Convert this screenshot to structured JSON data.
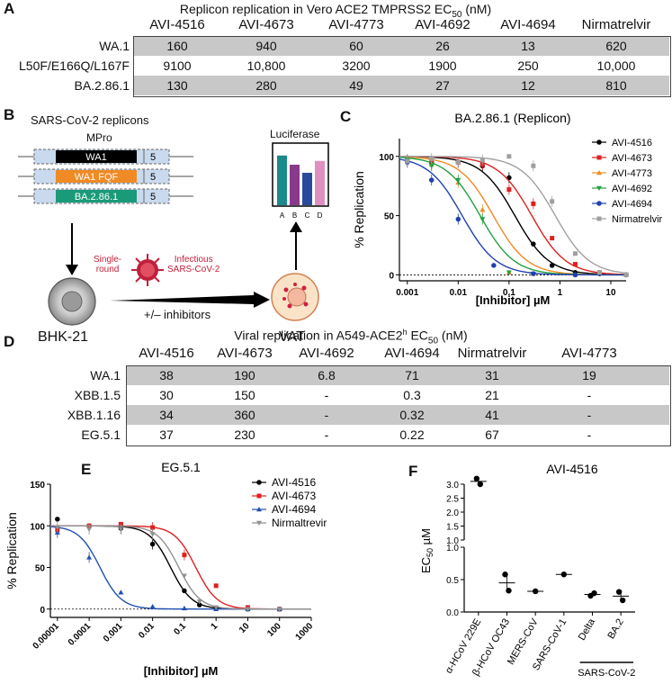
{
  "panelA": {
    "letter": "A",
    "title": "Replicon replication in Vero ACE2 TMPRSS2  EC",
    "title_sub": "50",
    "title_unit": " (nM)",
    "columns": [
      "AVI-4516",
      "AVI-4673",
      "AVI-4773",
      "AVI-4692",
      "AVI-4694",
      "Nirmatrelvir"
    ],
    "rows": [
      {
        "label": "WA.1",
        "values": [
          "160",
          "940",
          "60",
          "26",
          "13",
          "620"
        ]
      },
      {
        "label": "L50F/E166Q/L167F",
        "values": [
          "9100",
          "10,800",
          "3200",
          "1900",
          "250",
          "10,000"
        ]
      },
      {
        "label": "BA.2.86.1",
        "values": [
          "130",
          "280",
          "49",
          "27",
          "12",
          "810"
        ]
      }
    ]
  },
  "panelB": {
    "letter": "B",
    "title": "SARS-CoV-2 replicons",
    "mpro_label": "MPro",
    "replicons": [
      {
        "name": "WA1",
        "color": "#000000",
        "text_color": "#ffffff"
      },
      {
        "name": "WA1 FQF",
        "color": "#f08a24",
        "text_color": "#ffffff"
      },
      {
        "name": "BA.2.86.1",
        "color": "#1a9a78",
        "text_color": "#ffffff"
      }
    ],
    "five": "5",
    "cell_line": "BHK-21",
    "single_round": "Single-\nround",
    "infectious": "Infectious\nSARS-CoV-2",
    "inhibitors": "+/– inhibitors",
    "vat": "VAT",
    "luciferase": "Luciferase",
    "bar_labels": [
      "A",
      "B",
      "C",
      "D"
    ],
    "bar_colors": [
      "#1a8a8a",
      "#8a3a8a",
      "#2a4a9a",
      "#e090c0"
    ],
    "bar_levels": [
      0.92,
      0.75,
      0.6,
      0.82
    ]
  },
  "panelC": {
    "letter": "C",
    "chart_data": {
      "type": "line",
      "title": "BA.2.86.1 (Replicon)",
      "ylabel": "% Replication",
      "xlabel": "[Inhibitor] µM",
      "xscale": "log",
      "xlim": [
        0.0007,
        20
      ],
      "ylim": [
        -5,
        115
      ],
      "xticks": [
        0.001,
        0.01,
        0.1,
        1,
        10
      ],
      "xtick_labels": [
        "0.001",
        "0.01",
        "0.1",
        "1",
        "10"
      ],
      "yticks": [
        0,
        50,
        100
      ],
      "ytick_labels": [
        "0",
        "50",
        "100"
      ],
      "legend_position": "right",
      "series": [
        {
          "name": "AVI-4516",
          "color": "#000000",
          "marker": "circle",
          "ec50": 0.13,
          "x": [
            0.001,
            0.003,
            0.01,
            0.03,
            0.1,
            0.3,
            0.7,
            2,
            6,
            20
          ],
          "y": [
            97,
            95,
            95,
            92,
            82,
            26,
            8,
            2,
            1,
            0
          ]
        },
        {
          "name": "AVI-4673",
          "color": "#e02020",
          "marker": "square",
          "ec50": 0.28,
          "x": [
            0.001,
            0.003,
            0.01,
            0.03,
            0.1,
            0.3,
            0.7,
            2,
            6,
            20
          ],
          "y": [
            97,
            96,
            95,
            93,
            72,
            60,
            31,
            9,
            2,
            0
          ]
        },
        {
          "name": "AVI-4773",
          "color": "#f08a24",
          "marker": "triangle-up",
          "ec50": 0.049,
          "x": [
            0.001,
            0.003,
            0.01,
            0.03,
            0.1,
            0.3,
            2,
            20
          ],
          "y": [
            97,
            93,
            78,
            55,
            2,
            1,
            0,
            0
          ]
        },
        {
          "name": "AVI-4692",
          "color": "#22a040",
          "marker": "triangle-down",
          "ec50": 0.027,
          "x": [
            0.001,
            0.003,
            0.01,
            0.03,
            0.1,
            0.3,
            2,
            20
          ],
          "y": [
            97,
            92,
            80,
            47,
            2,
            1,
            0,
            0
          ]
        },
        {
          "name": "AVI-4694",
          "color": "#2040b0",
          "marker": "circle",
          "ec50": 0.012,
          "x": [
            0.001,
            0.003,
            0.01,
            0.05,
            0.3,
            2,
            20
          ],
          "y": [
            95,
            80,
            47,
            8,
            1,
            0,
            0
          ]
        },
        {
          "name": "Nirmatrelvir",
          "color": "#a0a0a0",
          "marker": "square",
          "ec50": 0.81,
          "x": [
            0.001,
            0.003,
            0.01,
            0.03,
            0.1,
            0.3,
            0.7,
            2,
            6,
            20
          ],
          "y": [
            96,
            98,
            95,
            97,
            100,
            92,
            62,
            18,
            2,
            0
          ]
        }
      ]
    }
  },
  "panelD": {
    "letter": "D",
    "title": "Viral replication in A549-ACE2",
    "title_sup": "h",
    "title_ec": " EC",
    "title_sub": "50",
    "title_unit": " (nM)",
    "columns": [
      "AVI-4516",
      "AVI-4673",
      "AVI-4692",
      "AVI-4694",
      "Nirmatrelvir",
      "AVI-4773"
    ],
    "rows": [
      {
        "label": "WA.1",
        "values": [
          "38",
          "190",
          "6.8",
          "71",
          "31",
          "19"
        ]
      },
      {
        "label": "XBB.1.5",
        "values": [
          "30",
          "150",
          "-",
          "0.3",
          "21",
          "-"
        ]
      },
      {
        "label": "XBB.1.16",
        "values": [
          "34",
          "360",
          "-",
          "0.32",
          "41",
          "-"
        ]
      },
      {
        "label": "EG.5.1",
        "values": [
          "37",
          "230",
          "-",
          "0.22",
          "67",
          "-"
        ]
      }
    ]
  },
  "panelE": {
    "letter": "E",
    "chart_data": {
      "type": "line",
      "title": "EG.5.1",
      "ylabel": "% Replication",
      "xlabel": "[Inhibitor] µM",
      "xscale": "log",
      "xlim": [
        6e-06,
        1000
      ],
      "ylim": [
        -10,
        150
      ],
      "xticks": [
        1e-05,
        0.0001,
        0.001,
        0.01,
        0.1,
        1,
        10,
        100,
        1000
      ],
      "xtick_labels": [
        "0.00001",
        "0.0001",
        "0.001",
        "0.01",
        "0.1",
        "1",
        "10",
        "100",
        "1000"
      ],
      "yticks": [
        0,
        50,
        100,
        150
      ],
      "ytick_labels": [
        "0",
        "50",
        "100",
        "150"
      ],
      "legend_position": "top-right",
      "series": [
        {
          "name": "AVI-4516",
          "color": "#000000",
          "marker": "circle",
          "ec50": 0.037,
          "x": [
            1e-05,
            0.0001,
            0.001,
            0.01,
            0.1,
            0.3,
            1,
            10,
            100
          ],
          "y": [
            108,
            100,
            97,
            78,
            22,
            5,
            1,
            0,
            0
          ]
        },
        {
          "name": "AVI-4673",
          "color": "#e02020",
          "marker": "square",
          "ec50": 0.23,
          "x": [
            1e-05,
            0.0001,
            0.001,
            0.01,
            0.1,
            1,
            10,
            100
          ],
          "y": [
            95,
            100,
            102,
            98,
            65,
            28,
            2,
            0
          ]
        },
        {
          "name": "AVI-4694",
          "color": "#2050b0",
          "marker": "triangle-up",
          "ec50": 0.00022,
          "x": [
            1e-05,
            0.0001,
            0.001,
            0.01,
            0.1,
            1,
            10,
            100
          ],
          "y": [
            92,
            62,
            20,
            3,
            1,
            0,
            0,
            0
          ]
        },
        {
          "name": "Nirmaltrevir",
          "color": "#909090",
          "marker": "triangle-down",
          "ec50": 0.067,
          "x": [
            1e-05,
            0.0001,
            0.001,
            0.01,
            0.1,
            0.3,
            1,
            10,
            100
          ],
          "y": [
            98,
            96,
            96,
            90,
            40,
            9,
            2,
            0,
            0
          ]
        }
      ]
    }
  },
  "panelF": {
    "letter": "F",
    "chart_data": {
      "type": "scatter",
      "title": "AVI-4516",
      "ylabel": "EC",
      "ylabel_sub": "50",
      "ylabel_unit": " µM",
      "yticks_upper": [
        "1.0",
        "1.5",
        "2.0",
        "2.5",
        "3.0"
      ],
      "yticks_lower": [
        "0.0",
        "0.5",
        "1.0"
      ],
      "categories": [
        "α-HCoV 229E",
        "β-HCoV OC43",
        "MERS-CoV",
        "SARS-CoV-1",
        "Delta",
        "BA.2"
      ],
      "group_label": "SARS-CoV-2",
      "values": [
        [
          3.2,
          3.0
        ],
        [
          0.58,
          0.33
        ],
        [
          0.32
        ],
        [
          0.58
        ],
        [
          0.25,
          0.29
        ],
        [
          0.31,
          0.18
        ]
      ],
      "means": [
        3.1,
        0.45,
        0.32,
        0.58,
        0.27,
        0.245
      ]
    }
  }
}
